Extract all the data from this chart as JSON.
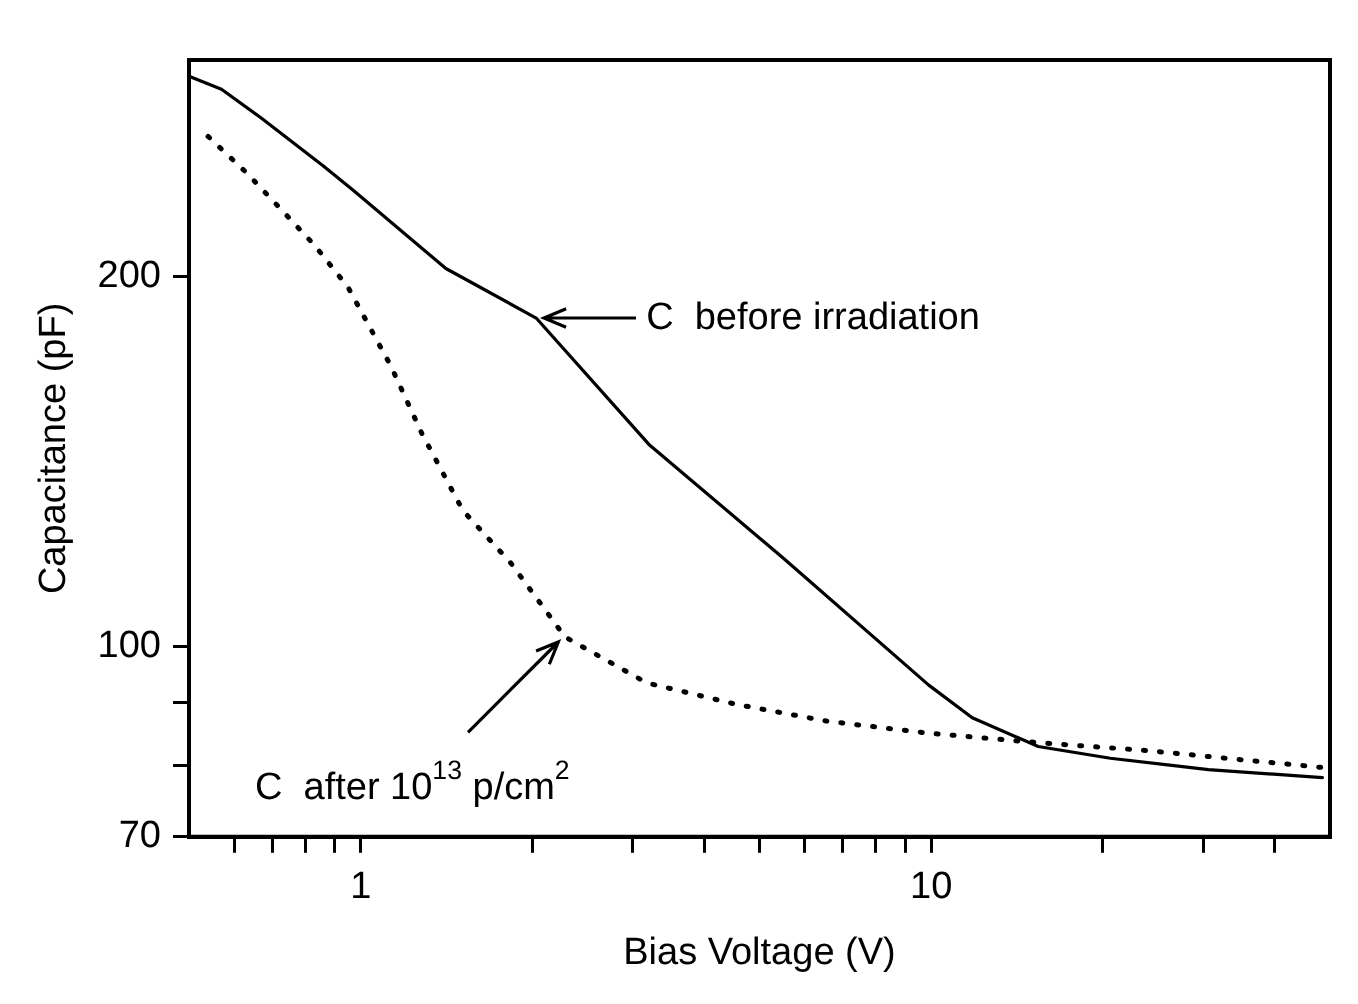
{
  "chart_data": {
    "type": "line",
    "xlabel": "Bias Voltage (V)",
    "ylabel": "Capacitance (pF)",
    "log": "xy",
    "grid": false,
    "legend": false,
    "marker": "none",
    "xlim": [
      0.5,
      50
    ],
    "ylim": [
      70,
      300
    ],
    "xticks": [
      {
        "value": 0.6,
        "label": null
      },
      {
        "value": 0.7,
        "label": null
      },
      {
        "value": 0.8,
        "label": null
      },
      {
        "value": 0.9,
        "label": null
      },
      1,
      {
        "value": 2,
        "label": null
      },
      {
        "value": 3,
        "label": null
      },
      {
        "value": 4,
        "label": null
      },
      {
        "value": 5,
        "label": null
      },
      {
        "value": 6,
        "label": null
      },
      {
        "value": 7,
        "label": null
      },
      {
        "value": 8,
        "label": null
      },
      {
        "value": 9,
        "label": null
      },
      10,
      {
        "value": 20,
        "label": null
      },
      {
        "value": 30,
        "label": null
      },
      {
        "value": 40,
        "label": null
      }
    ],
    "yticks": [
      70,
      {
        "value": 80,
        "label": null
      },
      {
        "value": 90,
        "label": null
      },
      100,
      200
    ],
    "series": [
      {
        "color": "#000000",
        "line_style": "solid",
        "x": [
          0.5,
          0.57,
          0.67,
          0.86,
          0.97,
          1.41,
          2.03,
          3.2,
          5.5,
          9.9,
          11.8,
          15.4,
          20.6,
          30.6,
          48.5
        ],
        "values": [
          291,
          284,
          269,
          246,
          235,
          203,
          185,
          146,
          118,
          93,
          87.5,
          82.9,
          81.1,
          79.4,
          78.2
        ]
      },
      {
        "color": "#000000",
        "line_style": "dotted",
        "x": [
          0.54,
          0.63,
          0.73,
          0.83,
          0.95,
          1.13,
          1.28,
          1.51,
          1.83,
          2.28,
          3.17,
          4.56,
          6.6,
          9.9,
          15.4,
          23.7,
          48.5
        ],
        "values": [
          260,
          243,
          226,
          212,
          196,
          169,
          149,
          129,
          117,
          101.8,
          93.4,
          89.7,
          86.9,
          85,
          83.5,
          82.3,
          79.7
        ]
      }
    ],
    "annotations": [
      {
        "text": "C  before irradiation",
        "x": 2.03,
        "y": 185
      },
      {
        "text": "C  after 10$^{13}$ p/cm$^{2}$",
        "x": 2.28,
        "y": 101.8
      }
    ]
  }
}
